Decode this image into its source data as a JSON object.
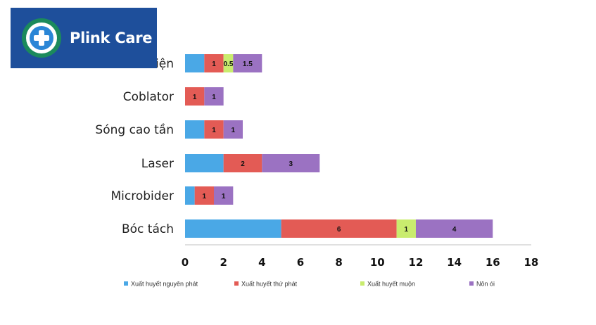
{
  "brand": {
    "name": "Plink Care",
    "logo_icon": "medical-cross-circle-icon"
  },
  "chart_data": {
    "type": "bar",
    "orientation": "horizontal",
    "stacked": true,
    "categories": [
      "Dao điện",
      "Coblator",
      "Sóng cao tần",
      "Laser",
      "Microbider",
      "Bóc tách"
    ],
    "series": [
      {
        "name": "Xuất huyết nguyên phát",
        "color": "#4aa8e6",
        "values": [
          1,
          0,
          1,
          2,
          0.5,
          5
        ]
      },
      {
        "name": "Xuất huyết thứ phát",
        "color": "#e35b55",
        "values": [
          1,
          1,
          1,
          2,
          1,
          6
        ]
      },
      {
        "name": "Xuất huyết muộn",
        "color": "#c9ec6e",
        "values": [
          0.5,
          0,
          0,
          0,
          0,
          1
        ]
      },
      {
        "name": "Nôn ói",
        "color": "#9b72c2",
        "values": [
          1.5,
          1,
          1,
          3,
          1,
          4
        ]
      }
    ],
    "data_labels": [
      [
        "",
        "1",
        "0.5",
        "1.5"
      ],
      [
        "",
        "1",
        "",
        "1"
      ],
      [
        "",
        "1",
        "",
        "1"
      ],
      [
        "",
        "2",
        "",
        "3"
      ],
      [
        "",
        "1",
        "",
        "1"
      ],
      [
        "",
        "6",
        "1",
        "4"
      ]
    ],
    "xlim": [
      0,
      18
    ],
    "xticks": [
      "0",
      "2",
      "4",
      "6",
      "8",
      "10",
      "12",
      "14",
      "16",
      "18"
    ],
    "title": "",
    "xlabel": "",
    "ylabel": "",
    "grid": false,
    "legend_position": "bottom"
  }
}
